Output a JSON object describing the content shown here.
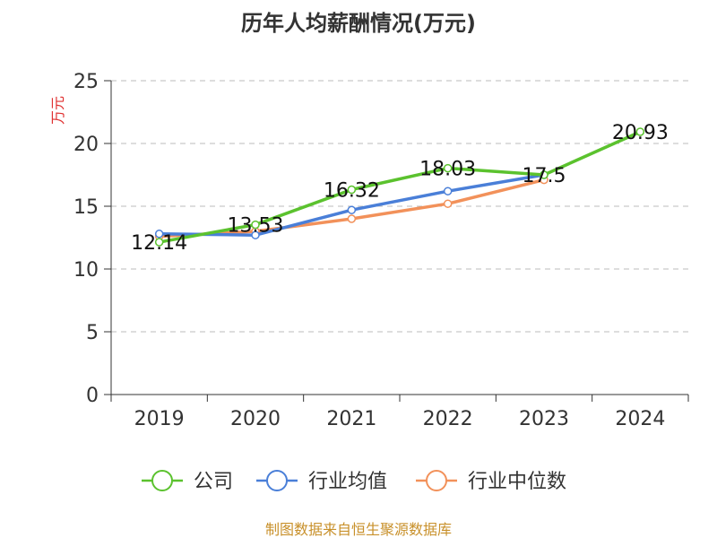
{
  "chart_data": {
    "type": "line",
    "title": "历年人均薪酬情况(万元)",
    "ylabel": "万元",
    "categories": [
      "2019",
      "2020",
      "2021",
      "2022",
      "2023",
      "2024"
    ],
    "ylim": [
      0,
      25
    ],
    "yticks": [
      0,
      5,
      10,
      15,
      20,
      25
    ],
    "grid": true,
    "legend_position": "bottom",
    "series": [
      {
        "name": "公司",
        "color": "#5bc22e",
        "values": [
          12.14,
          13.53,
          16.32,
          18.03,
          17.5,
          20.93
        ],
        "labels": [
          "12.14",
          "13.53",
          "16.32",
          "18.03",
          "17.5",
          "20.93"
        ]
      },
      {
        "name": "行业均值",
        "color": "#4a7fd8",
        "values": [
          12.8,
          12.7,
          14.7,
          16.2,
          17.5,
          null
        ]
      },
      {
        "name": "行业中位数",
        "color": "#f2915a",
        "values": [
          12.6,
          13.0,
          14.0,
          15.2,
          17.1,
          null
        ]
      }
    ]
  },
  "source_text": "制图数据来自恒生聚源数据库",
  "colors": {
    "ylabel": "#e03030",
    "source": "#c8902a",
    "axis": "#333333",
    "grid": "#bbbbbb"
  }
}
